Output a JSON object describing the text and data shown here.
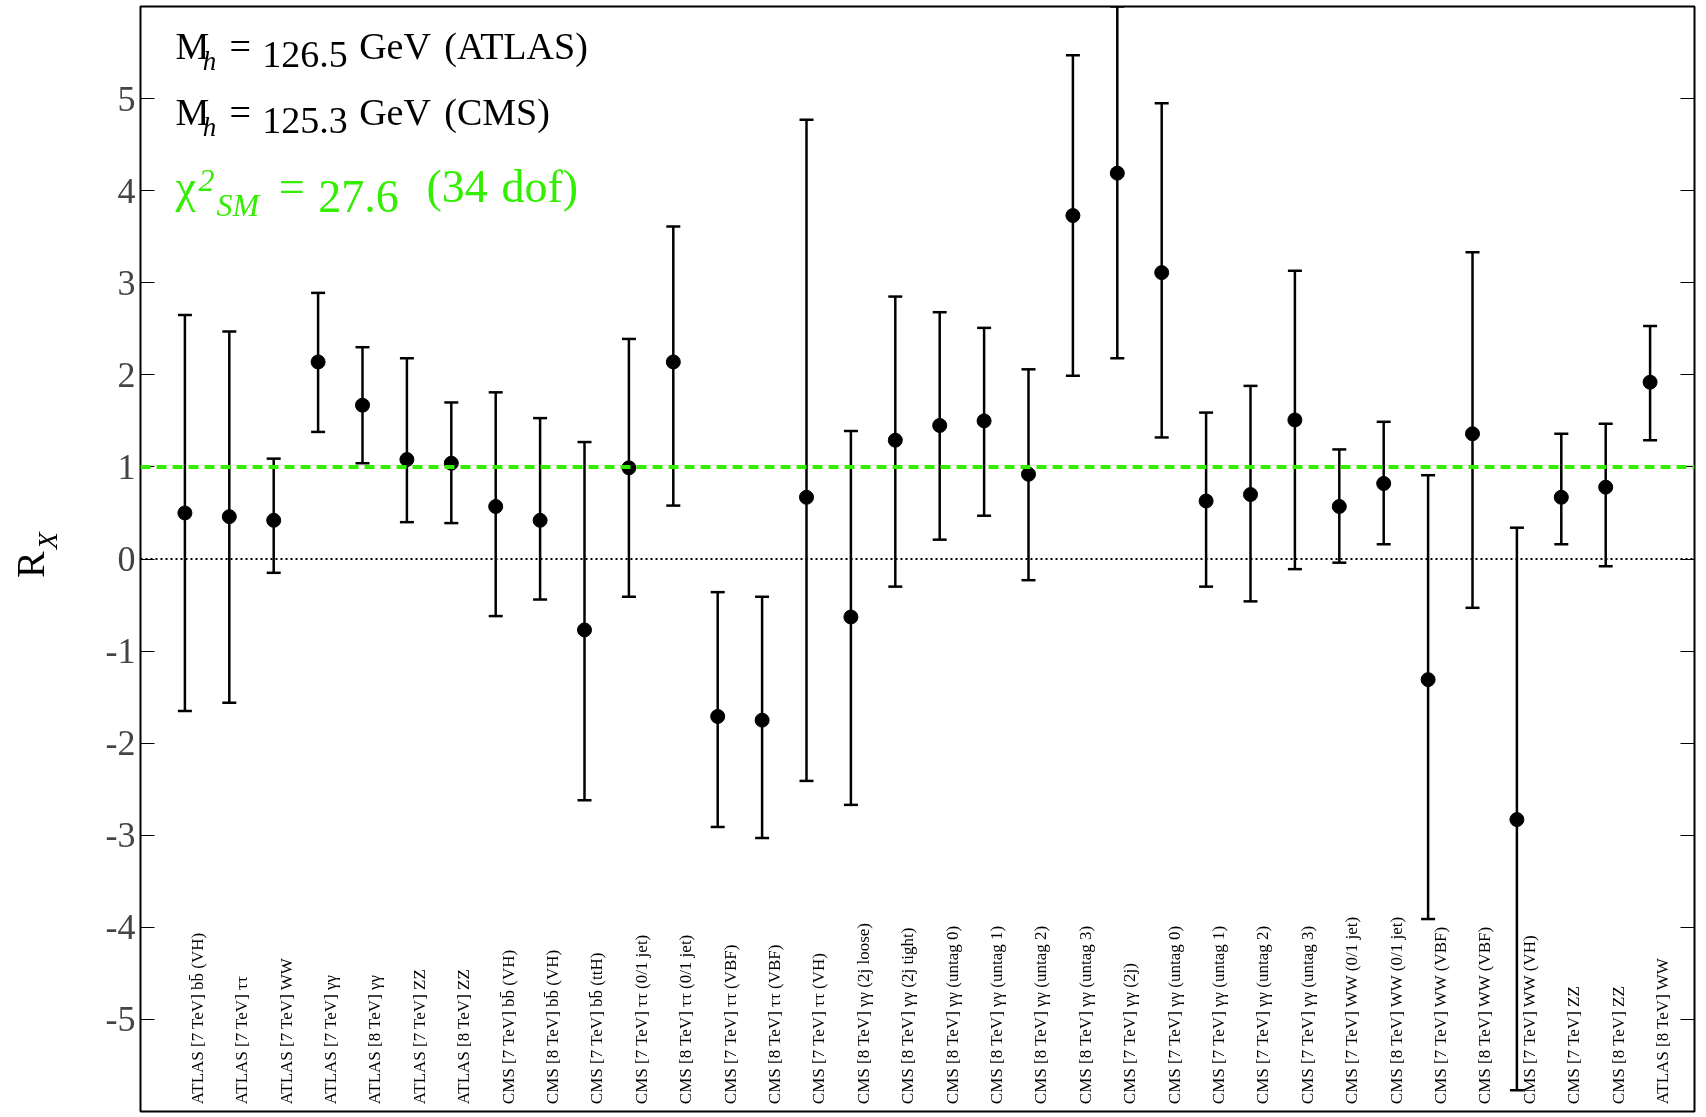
{
  "chart_data": {
    "type": "scatter",
    "ylabel": "R$_{X}$",
    "annotations": [
      "M$_{h}$ = 126.5 GeV (ATLAS)",
      "M$_{h}$ = 125.3 GeV (CMS)",
      "χ$^{2}$$_{SM}$ = 27.6  (34 dof)"
    ],
    "categories": [
      "ATLAS [7 TeV] bb̄ (VH)",
      "ATLAS [7 TeV] ττ",
      "ATLAS [7 TeV] WW",
      "ATLAS [7 TeV] γγ",
      "ATLAS [8 TeV] γγ",
      "ATLAS [7 TeV] ZZ",
      "ATLAS [8 TeV] ZZ",
      "CMS [7 TeV] bb̄ (VH)",
      "CMS [8 TeV] bb̄ (VH)",
      "CMS [7 TeV] bb̄ (ttH)",
      "CMS [7 TeV] ττ (0/1 jet)",
      "CMS [8 TeV] ττ (0/1 jet)",
      "CMS [7 TeV] ττ (VBF)",
      "CMS [8 TeV] ττ (VBF)",
      "CMS [7 TeV] ττ (VH)",
      "CMS [8 TeV] γγ (2j loose)",
      "CMS [8 TeV] γγ (2j tight)",
      "CMS [8 TeV] γγ (untag 0)",
      "CMS [8 TeV] γγ (untag 1)",
      "CMS [8 TeV] γγ (untag 2)",
      "CMS [8 TeV] γγ (untag 3)",
      "CMS [7 TeV] γγ (2j)",
      "CMS [7 TeV] γγ (untag 0)",
      "CMS [7 TeV] γγ (untag 1)",
      "CMS [7 TeV] γγ (untag 2)",
      "CMS [7 TeV] γγ (untag 3)",
      "CMS [7 TeV] WW (0/1 jet)",
      "CMS [8 TeV] WW (0/1 jet)",
      "CMS [7 TeV] WW (VBF)",
      "CMS [8 TeV] WW (VBF)",
      "CMS [7 TeV] WW (VH)",
      "CMS [7 TeV] ZZ",
      "CMS [8 TeV] ZZ",
      "ATLAS [8 TeV] WW"
    ],
    "series": [
      {
        "color": "#000000",
        "values": [
          0.5,
          0.46,
          0.42,
          2.14,
          1.67,
          1.08,
          1.04,
          0.57,
          0.42,
          -0.77,
          0.99,
          2.14,
          -1.71,
          -1.75,
          0.67,
          -0.63,
          1.29,
          1.45,
          1.5,
          0.92,
          3.73,
          4.19,
          3.11,
          0.63,
          0.7,
          1.51,
          0.57,
          0.82,
          -1.31,
          1.36,
          -2.83,
          0.67,
          0.78,
          1.92
        ],
        "errors": [
          [
            -1.65,
            2.65
          ],
          [
            -1.56,
            2.47
          ],
          [
            -0.15,
            1.09
          ],
          [
            1.38,
            2.89
          ],
          [
            1.04,
            2.3
          ],
          [
            0.4,
            2.18
          ],
          [
            0.39,
            1.7
          ],
          [
            -0.62,
            1.81
          ],
          [
            -0.44,
            1.53
          ],
          [
            -2.62,
            1.27
          ],
          [
            -0.41,
            2.39
          ],
          [
            0.58,
            3.61
          ],
          [
            -2.91,
            -0.36
          ],
          [
            -3.03,
            -0.41
          ],
          [
            -2.41,
            4.77
          ],
          [
            -2.67,
            1.39
          ],
          [
            -0.3,
            2.85
          ],
          [
            0.21,
            2.68
          ],
          [
            0.47,
            2.51
          ],
          [
            -0.23,
            2.06
          ],
          [
            1.99,
            5.47
          ],
          [
            2.18,
            6
          ],
          [
            1.32,
            4.95
          ],
          [
            -0.3,
            1.59
          ],
          [
            -0.46,
            1.88
          ],
          [
            -0.11,
            3.13
          ],
          [
            -0.04,
            1.19
          ],
          [
            0.16,
            1.49
          ],
          [
            -3.91,
            0.91
          ],
          [
            -0.53,
            3.33
          ],
          [
            -5.77,
            0.34
          ],
          [
            0.16,
            1.36
          ],
          [
            -0.08,
            1.47
          ],
          [
            1.29,
            2.53
          ]
        ]
      }
    ],
    "ylim": [
      -6,
      6
    ],
    "yticks": [
      -5,
      -4,
      -3,
      -2,
      -1,
      0,
      1,
      2,
      3,
      4,
      5
    ],
    "ref_lines": [
      {
        "axis": "y",
        "value": 0,
        "color": "#000000",
        "line_style": "dotted"
      },
      {
        "axis": "y",
        "value": 1,
        "color": "#33ee00",
        "line_style": "dashed"
      }
    ],
    "marker": "circle",
    "grid": false,
    "tick_labels": "y"
  }
}
